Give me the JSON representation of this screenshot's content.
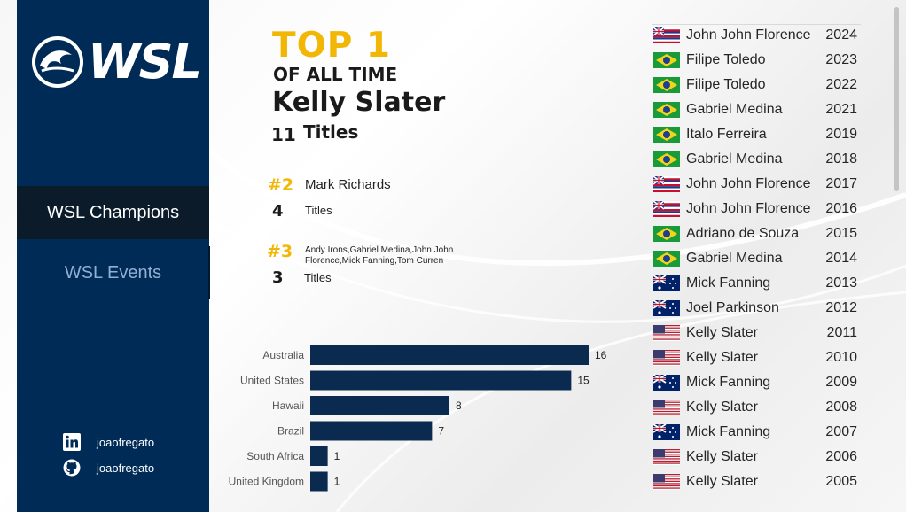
{
  "brand": {
    "logo_text": "WSL"
  },
  "nav": {
    "active": "WSL Champions",
    "other": "WSL Events"
  },
  "social": [
    {
      "icon": "linkedin-icon",
      "handle": "joaofregato"
    },
    {
      "icon": "github-icon",
      "handle": "joaofregato"
    }
  ],
  "headline": {
    "top": "TOP 1",
    "subtitle": "OF ALL TIME",
    "name": "Kelly Slater",
    "count": "11",
    "titles_label": "Titles"
  },
  "rank2": {
    "rank": "#2",
    "name": "Mark Richards",
    "count": "4",
    "titles_label": "Titles"
  },
  "rank3": {
    "rank": "#3",
    "names": "Andy Irons,Gabriel Medina,John John Florence,Mick Fanning,Tom Curren",
    "count": "3",
    "titles_label": "Titles"
  },
  "colors": {
    "navy": "#002b56",
    "gold": "#f2b705",
    "bar": "#0b2a50"
  },
  "chart_data": {
    "type": "bar",
    "orientation": "horizontal",
    "title": "",
    "categories": [
      "Australia",
      "United States",
      "Hawaii",
      "Brazil",
      "South Africa",
      "United Kingdom"
    ],
    "values": [
      16,
      15,
      8,
      7,
      1,
      1
    ],
    "xlim": [
      0,
      16
    ]
  },
  "champions": [
    {
      "flag": "hawaii-flag",
      "name": "John John Florence",
      "year": "2024"
    },
    {
      "flag": "brazil-flag",
      "name": "Filipe Toledo",
      "year": "2023"
    },
    {
      "flag": "brazil-flag",
      "name": "Filipe Toledo",
      "year": "2022"
    },
    {
      "flag": "brazil-flag",
      "name": "Gabriel Medina",
      "year": "2021"
    },
    {
      "flag": "brazil-flag",
      "name": "Italo Ferreira",
      "year": "2019"
    },
    {
      "flag": "brazil-flag",
      "name": "Gabriel Medina",
      "year": "2018"
    },
    {
      "flag": "hawaii-flag",
      "name": "John John Florence",
      "year": "2017"
    },
    {
      "flag": "hawaii-flag",
      "name": "John John Florence",
      "year": "2016"
    },
    {
      "flag": "brazil-flag",
      "name": "Adriano de Souza",
      "year": "2015"
    },
    {
      "flag": "brazil-flag",
      "name": "Gabriel Medina",
      "year": "2014"
    },
    {
      "flag": "australia-flag",
      "name": "Mick Fanning",
      "year": "2013"
    },
    {
      "flag": "australia-flag",
      "name": "Joel Parkinson",
      "year": "2012"
    },
    {
      "flag": "usa-flag",
      "name": "Kelly Slater",
      "year": "2011"
    },
    {
      "flag": "usa-flag",
      "name": "Kelly Slater",
      "year": "2010"
    },
    {
      "flag": "australia-flag",
      "name": "Mick Fanning",
      "year": "2009"
    },
    {
      "flag": "usa-flag",
      "name": "Kelly Slater",
      "year": "2008"
    },
    {
      "flag": "australia-flag",
      "name": "Mick Fanning",
      "year": "2007"
    },
    {
      "flag": "usa-flag",
      "name": "Kelly Slater",
      "year": "2006"
    },
    {
      "flag": "usa-flag",
      "name": "Kelly Slater",
      "year": "2005"
    }
  ]
}
